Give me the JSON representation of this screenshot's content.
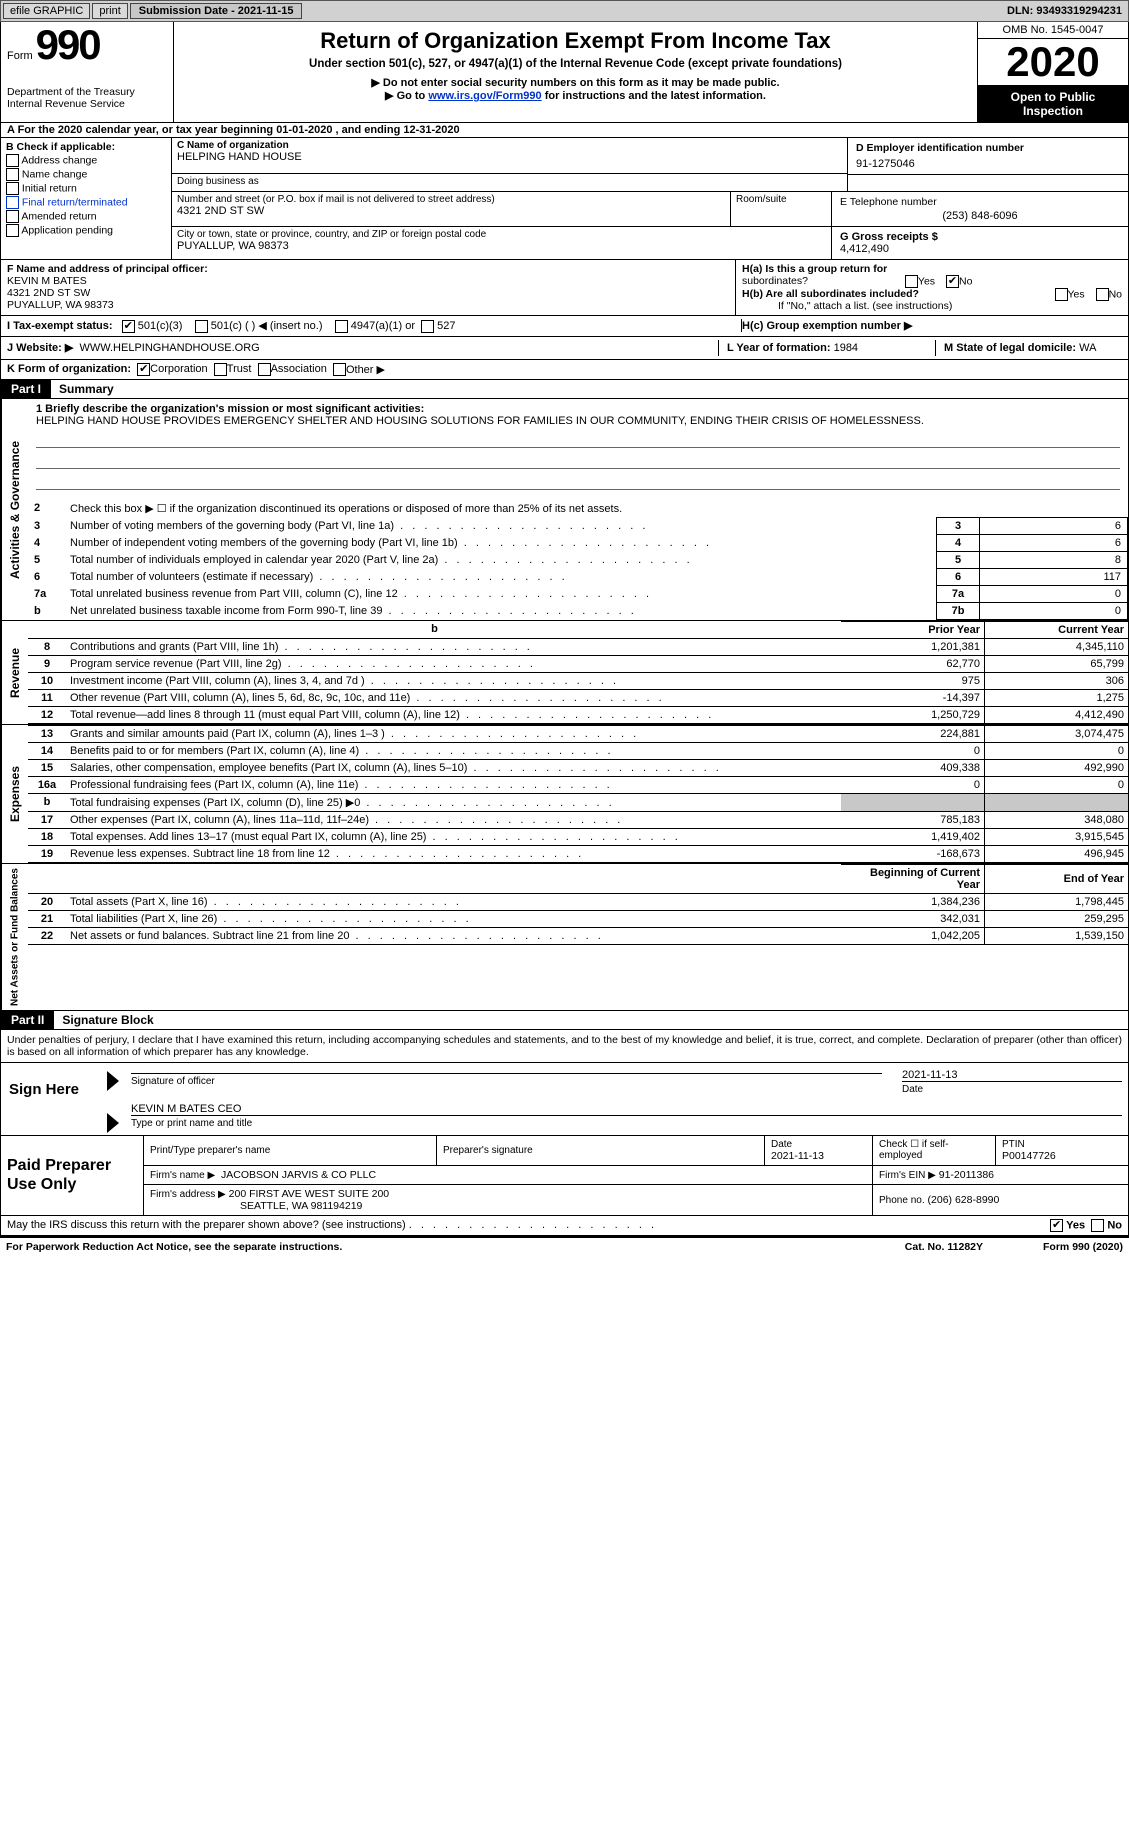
{
  "topbar": {
    "efile": "efile GRAPHIC",
    "print": "print",
    "submission_date_label": "Submission Date - 2021-11-15",
    "dln": "DLN: 93493319294231"
  },
  "header": {
    "form_word": "Form",
    "form_number": "990",
    "dept": "Department of the Treasury",
    "irs": "Internal Revenue Service",
    "title": "Return of Organization Exempt From Income Tax",
    "subtitle": "Under section 501(c), 527, or 4947(a)(1) of the Internal Revenue Code (except private foundations)",
    "note1": "▶ Do not enter social security numbers on this form as it may be made public.",
    "note2_prefix": "▶ Go to ",
    "note2_link": "www.irs.gov/Form990",
    "note2_suffix": " for instructions and the latest information.",
    "omb": "OMB No. 1545-0047",
    "year": "2020",
    "inspection_l1": "Open to Public",
    "inspection_l2": "Inspection"
  },
  "period": "A For the 2020 calendar year, or tax year beginning 01-01-2020   , and ending 12-31-2020",
  "b": {
    "label": "B Check if applicable:",
    "addr_change": "Address change",
    "name_change": "Name change",
    "initial": "Initial return",
    "final": "Final return/terminated",
    "amended": "Amended return",
    "app_pending": "Application pending"
  },
  "c": {
    "name_label": "C Name of organization",
    "name": "HELPING HAND HOUSE",
    "dba_label": "Doing business as",
    "dba": "",
    "street_label": "Number and street (or P.O. box if mail is not delivered to street address)",
    "street": "4321 2ND ST SW",
    "room_label": "Room/suite",
    "city_label": "City or town, state or province, country, and ZIP or foreign postal code",
    "city": "PUYALLUP, WA  98373"
  },
  "d": {
    "label": "D Employer identification number",
    "value": "91-1275046"
  },
  "e": {
    "label": "E Telephone number",
    "value": "(253) 848-6096"
  },
  "g": {
    "label": "G Gross receipts $",
    "value": "4,412,490"
  },
  "f": {
    "label": "F Name and address of principal officer:",
    "name": "KEVIN M BATES",
    "street": "4321 2ND ST SW",
    "city": "PUYALLUP, WA  98373"
  },
  "h": {
    "a_label": "H(a)  Is this a group return for",
    "a_label2": "subordinates?",
    "b_label": "H(b)  Are all subordinates included?",
    "b_note": "If \"No,\" attach a list. (see instructions)",
    "c_label": "H(c)  Group exemption number ▶",
    "yes": "Yes",
    "no": "No"
  },
  "i": {
    "label": "I  Tax-exempt status:",
    "o1": "501(c)(3)",
    "o2": "501(c) (  ) ◀ (insert no.)",
    "o3": "4947(a)(1) or",
    "o4": "527"
  },
  "j": {
    "label": "J  Website: ▶",
    "value": "WWW.HELPINGHANDHOUSE.ORG"
  },
  "k": {
    "label": "K Form of organization:",
    "corp": "Corporation",
    "trust": "Trust",
    "assoc": "Association",
    "other": "Other ▶"
  },
  "l": {
    "label": "L Year of formation:",
    "value": "1984"
  },
  "m": {
    "label": "M State of legal domicile:",
    "value": "WA"
  },
  "part1": {
    "tab": "Part I",
    "title": "Summary"
  },
  "gov": {
    "l1_label": "1  Briefly describe the organization's mission or most significant activities:",
    "mission": "HELPING HAND HOUSE PROVIDES EMERGENCY SHELTER AND HOUSING SOLUTIONS FOR FAMILIES IN OUR COMMUNITY, ENDING THEIR CRISIS OF HOMELESSNESS.",
    "l2": "Check this box ▶ ☐  if the organization discontinued its operations or disposed of more than 25% of its net assets.",
    "rows": [
      {
        "n": "3",
        "label": "Number of voting members of the governing body (Part VI, line 1a)",
        "box": "3",
        "val": "6"
      },
      {
        "n": "4",
        "label": "Number of independent voting members of the governing body (Part VI, line 1b)",
        "box": "4",
        "val": "6"
      },
      {
        "n": "5",
        "label": "Total number of individuals employed in calendar year 2020 (Part V, line 2a)",
        "box": "5",
        "val": "8"
      },
      {
        "n": "6",
        "label": "Total number of volunteers (estimate if necessary)",
        "box": "6",
        "val": "117"
      },
      {
        "n": "7a",
        "label": "Total unrelated business revenue from Part VIII, column (C), line 12",
        "box": "7a",
        "val": "0"
      },
      {
        "n": "b",
        "label": "Net unrelated business taxable income from Form 990-T, line 39",
        "box": "7b",
        "val": "0"
      }
    ],
    "vlabel": "Activities & Governance"
  },
  "rev": {
    "vlabel": "Revenue",
    "header_prior": "Prior Year",
    "header_current": "Current Year",
    "rows": [
      {
        "n": "8",
        "label": "Contributions and grants (Part VIII, line 1h)",
        "py": "1,201,381",
        "cy": "4,345,110"
      },
      {
        "n": "9",
        "label": "Program service revenue (Part VIII, line 2g)",
        "py": "62,770",
        "cy": "65,799"
      },
      {
        "n": "10",
        "label": "Investment income (Part VIII, column (A), lines 3, 4, and 7d )",
        "py": "975",
        "cy": "306"
      },
      {
        "n": "11",
        "label": "Other revenue (Part VIII, column (A), lines 5, 6d, 8c, 9c, 10c, and 11e)",
        "py": "-14,397",
        "cy": "1,275"
      },
      {
        "n": "12",
        "label": "Total revenue—add lines 8 through 11 (must equal Part VIII, column (A), line 12)",
        "py": "1,250,729",
        "cy": "4,412,490"
      }
    ]
  },
  "exp": {
    "vlabel": "Expenses",
    "rows": [
      {
        "n": "13",
        "label": "Grants and similar amounts paid (Part IX, column (A), lines 1–3 )",
        "py": "224,881",
        "cy": "3,074,475"
      },
      {
        "n": "14",
        "label": "Benefits paid to or for members (Part IX, column (A), line 4)",
        "py": "0",
        "cy": "0"
      },
      {
        "n": "15",
        "label": "Salaries, other compensation, employee benefits (Part IX, column (A), lines 5–10)",
        "py": "409,338",
        "cy": "492,990"
      },
      {
        "n": "16a",
        "label": "Professional fundraising fees (Part IX, column (A), line 11e)",
        "py": "0",
        "cy": "0"
      },
      {
        "n": "b",
        "label": "Total fundraising expenses (Part IX, column (D), line 25) ▶0",
        "py": "",
        "cy": "",
        "shaded": true
      },
      {
        "n": "17",
        "label": "Other expenses (Part IX, column (A), lines 11a–11d, 11f–24e)",
        "py": "785,183",
        "cy": "348,080"
      },
      {
        "n": "18",
        "label": "Total expenses. Add lines 13–17 (must equal Part IX, column (A), line 25)",
        "py": "1,419,402",
        "cy": "3,915,545"
      },
      {
        "n": "19",
        "label": "Revenue less expenses. Subtract line 18 from line 12",
        "py": "-168,673",
        "cy": "496,945"
      }
    ]
  },
  "net": {
    "vlabel": "Net Assets or Fund Balances",
    "header_begin": "Beginning of Current Year",
    "header_end": "End of Year",
    "rows": [
      {
        "n": "20",
        "label": "Total assets (Part X, line 16)",
        "py": "1,384,236",
        "cy": "1,798,445"
      },
      {
        "n": "21",
        "label": "Total liabilities (Part X, line 26)",
        "py": "342,031",
        "cy": "259,295"
      },
      {
        "n": "22",
        "label": "Net assets or fund balances. Subtract line 21 from line 20",
        "py": "1,042,205",
        "cy": "1,539,150"
      }
    ]
  },
  "part2": {
    "tab": "Part II",
    "title": "Signature Block"
  },
  "declaration": "Under penalties of perjury, I declare that I have examined this return, including accompanying schedules and statements, and to the best of my knowledge and belief, it is true, correct, and complete. Declaration of preparer (other than officer) is based on all information of which preparer has any knowledge.",
  "sign": {
    "left": "Sign Here",
    "sig_label": "Signature of officer",
    "date_label": "Date",
    "date": "2021-11-13",
    "name": "KEVIN M BATES CEO",
    "name_label": "Type or print name and title"
  },
  "prep": {
    "left": "Paid Preparer Use Only",
    "h_name": "Print/Type preparer's name",
    "h_sig": "Preparer's signature",
    "h_date": "Date",
    "date": "2021-11-13",
    "check_label": "Check ☐ if self-employed",
    "ptin_label": "PTIN",
    "ptin": "P00147726",
    "firm_name_label": "Firm's name   ▶",
    "firm_name": "JACOBSON JARVIS & CO PLLC",
    "firm_ein_label": "Firm's EIN ▶",
    "firm_ein": "91-2011386",
    "firm_addr_label": "Firm's address ▶",
    "firm_addr1": "200 FIRST AVE WEST SUITE 200",
    "firm_addr2": "SEATTLE, WA  981194219",
    "phone_label": "Phone no.",
    "phone": "(206) 628-8990"
  },
  "discuss": {
    "text": "May the IRS discuss this return with the preparer shown above? (see instructions)",
    "yes": "Yes",
    "no": "No"
  },
  "footer": {
    "paperwork": "For Paperwork Reduction Act Notice, see the separate instructions.",
    "cat": "Cat. No. 11282Y",
    "form": "Form 990 (2020)"
  }
}
